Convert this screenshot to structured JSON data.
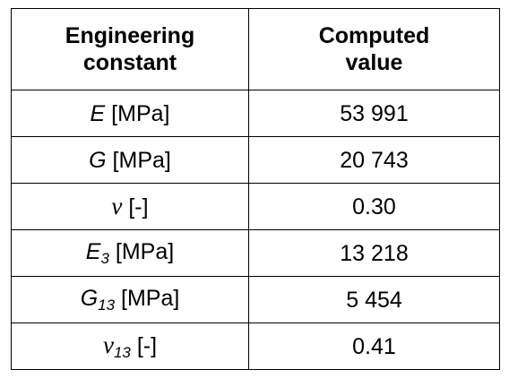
{
  "table": {
    "headers": {
      "col1_line1": "Engineering",
      "col1_line2": "constant",
      "col2_line1": "Computed",
      "col2_line2": "value"
    },
    "rows": [
      {
        "symbol": "E",
        "subscript": "",
        "unit": "[MPa]",
        "value": "53 991"
      },
      {
        "symbol": "G",
        "subscript": "",
        "unit": "[MPa]",
        "value": "20 743"
      },
      {
        "symbol": "ν",
        "subscript": "",
        "unit": "[-]",
        "value": "0.30"
      },
      {
        "symbol": "E",
        "subscript": "3",
        "unit": "[MPa]",
        "value": "13 218"
      },
      {
        "symbol": "G",
        "subscript": "13",
        "unit": "[MPa]",
        "value": "5 454"
      },
      {
        "symbol": "ν",
        "subscript": "13",
        "unit": "[-]",
        "value": "0.41"
      }
    ]
  }
}
